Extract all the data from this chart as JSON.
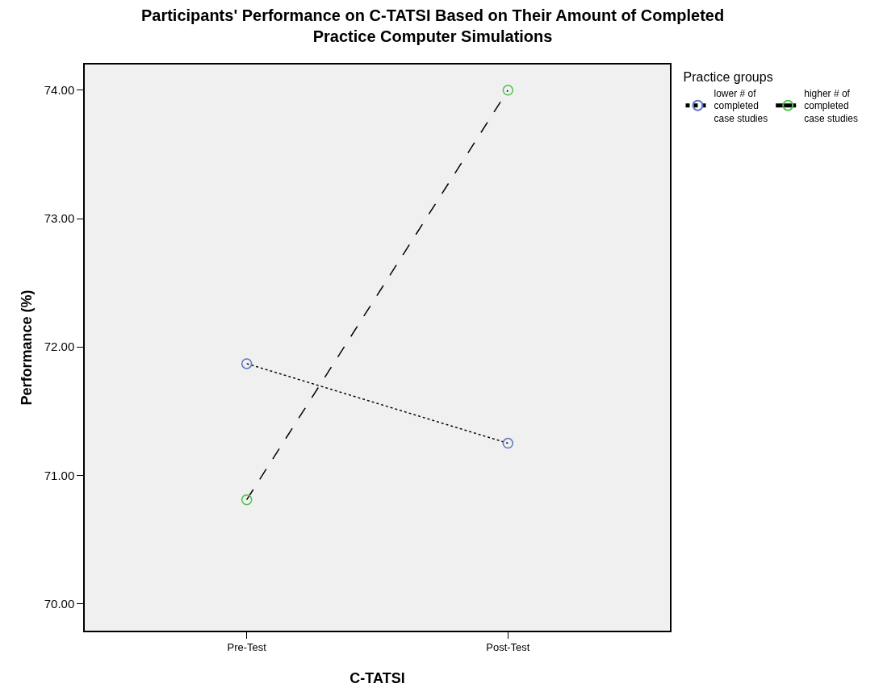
{
  "chart_data": {
    "type": "line",
    "title": "Participants' Performance on C-TATSI Based on Their Amount of Completed\nPractice Computer Simulations",
    "xlabel": "C-TATSI",
    "ylabel": "Performance (%)",
    "legend_title": "Practice groups",
    "categories": [
      "Pre-Test",
      "Post-Test"
    ],
    "series": [
      {
        "name": "lower # of\ncompleted\ncase studies",
        "color": "#5b74c6",
        "line_style": "dotted",
        "values": [
          71.87,
          71.25
        ]
      },
      {
        "name": "higher # of\ncompleted\ncase studies",
        "color": "#4fc24f",
        "line_style": "dashed",
        "values": [
          70.81,
          74.0
        ]
      }
    ],
    "ylim": [
      69.79,
      74.2
    ],
    "yticks": [
      {
        "value": 70,
        "label": "70.00"
      },
      {
        "value": 71,
        "label": "71.00"
      },
      {
        "value": 72,
        "label": "72.00"
      },
      {
        "value": 73,
        "label": "73.00"
      },
      {
        "value": 74,
        "label": "74.00"
      }
    ],
    "grid": false,
    "legend": "top right",
    "marker": "circle"
  }
}
